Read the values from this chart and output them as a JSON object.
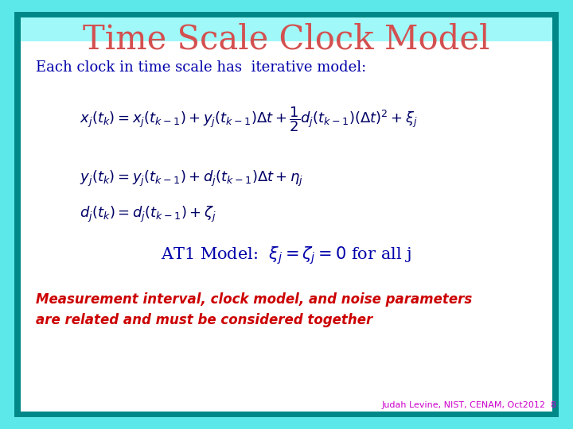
{
  "title": "Time Scale Clock Model",
  "title_color": "#d45050",
  "subtitle": "Each clock in time scale has  iterative model:",
  "subtitle_color": "#0000aa",
  "eq1": "$x_j(t_k) = x_j(t_{k-1}) + y_j(t_{k-1})\\Delta t + \\dfrac{1}{2}d_j(t_{k-1})(\\Delta t)^2 + \\xi_j$",
  "eq2": "$y_j(t_k) = y_j(t_{k-1}) + d_j(t_{k-1})\\Delta t + \\eta_j$",
  "eq3": "$d_j(t_k) = d_j(t_{k-1}) + \\zeta_j$",
  "at1_text": "AT1 Model:  $\\xi_j{=}\\zeta_j{=}0$ for all j",
  "at1_color": "#0000aa",
  "italic_text": "Measurement interval, clock model, and noise parameters\nare related and must be considered together",
  "italic_color": "#cc0000",
  "footer": "Judah Levine, NIST, CENAM, Oct2012  8",
  "footer_color": "#cc00cc",
  "bg_outer": "#5ce8e8",
  "bg_border": "#008888",
  "bg_inner": "#ffffff",
  "eq_color": "#000066",
  "figw": 7.2,
  "figh": 5.4
}
